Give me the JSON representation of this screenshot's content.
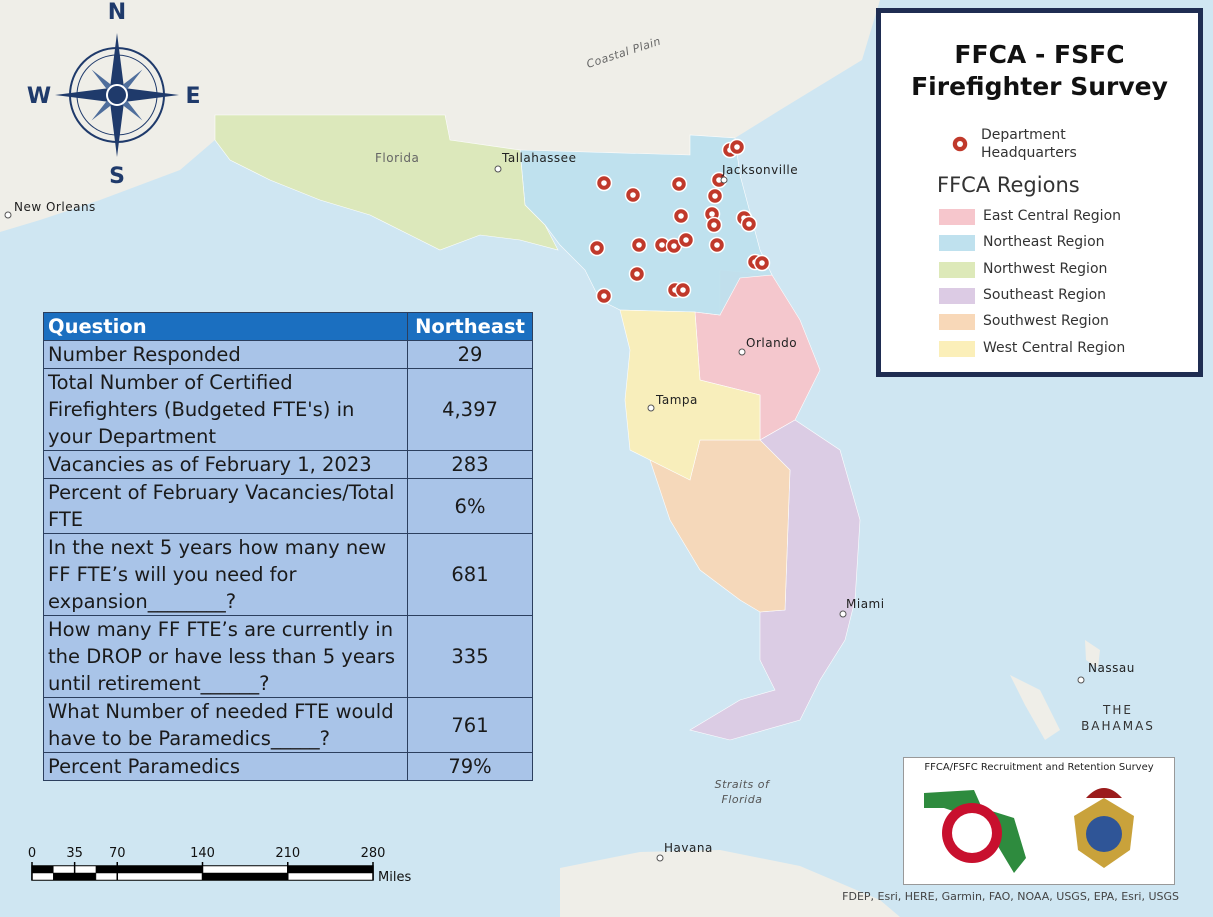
{
  "compass": {
    "north": "N",
    "west": "W",
    "east": "E",
    "south": "S"
  },
  "map_labels": [
    {
      "lines": [
        "Coastal Plain"
      ]
    },
    {
      "lines": [
        "Florida"
      ]
    },
    {
      "lines": [
        "Tallahassee"
      ]
    },
    {
      "lines": [
        "New Orleans"
      ]
    },
    {
      "lines": [
        "Jacksonville"
      ]
    },
    {
      "lines": [
        "Orlando"
      ]
    },
    {
      "lines": [
        "Tampa"
      ]
    },
    {
      "lines": [
        "Miami"
      ]
    },
    {
      "lines": [
        "Nassau"
      ]
    },
    {
      "lines": [
        "THE",
        "BAHAMAS"
      ]
    },
    {
      "lines": [
        "Straits of",
        "Florida"
      ]
    },
    {
      "lines": [
        "Havana"
      ]
    }
  ],
  "legend": {
    "title": [
      "FFCA - FSFC",
      "Firefighter Survey"
    ],
    "marker_label": "Department Headquarters",
    "regions_title": "FFCA Regions",
    "regions": [
      {
        "name": "East Central Region",
        "color": "#f6c6cc"
      },
      {
        "name": "Northeast Region",
        "color": "#bfe1ee"
      },
      {
        "name": "Northwest Region",
        "color": "#dde9b9"
      },
      {
        "name": "Southeast Region",
        "color": "#dccbe4"
      },
      {
        "name": "Southwest Region",
        "color": "#f8d8b8"
      },
      {
        "name": "West Central Region",
        "color": "#fbefb9"
      }
    ]
  },
  "table": {
    "header": [
      "Question",
      "Northeast"
    ],
    "rows": [
      [
        "Number Responded",
        "29"
      ],
      [
        "Total Number of Certified Firefighters (Budgeted FTE's) in your Department",
        "4,397"
      ],
      [
        "Vacancies as of February 1, 2023",
        "283"
      ],
      [
        "Percent of February Vacancies/Total FTE",
        "6%"
      ],
      [
        "In the next 5 years how many new FF FTE’s will you need for expansion________?",
        "681"
      ],
      [
        "How many FF FTE’s are currently in the DROP or have less than 5 years until retirement______?",
        "335"
      ],
      [
        "What Number of needed FTE would have to be Paramedics_____?",
        "761"
      ],
      [
        "Percent Paramedics",
        "79%"
      ]
    ]
  },
  "scale_bar": {
    "ticks": [
      0,
      35,
      70,
      140,
      210,
      280
    ],
    "unit": "Miles"
  },
  "logo_box": {
    "title": "FFCA/FSFC Recruitment and Retention Survey"
  },
  "attribution": "FDEP, Esri, HERE, Garmin, FAO, NOAA, USGS, EPA, Esri, USGS"
}
